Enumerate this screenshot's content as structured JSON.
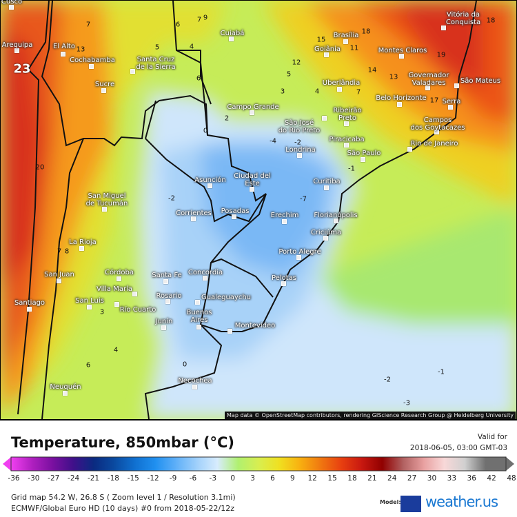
{
  "map": {
    "cities": [
      "Cusco",
      "Arequipa",
      "El Alto",
      "Cochabamba",
      "Sucre",
      "Santa Cruz\nde la Sierra",
      "Cuiabá",
      "Campo Grande",
      "Brasília",
      "Goiânia",
      "Montes Claros",
      "Vitória da\nConquista",
      "Governador\nValadares",
      "São Mateus",
      "Uberlândia",
      "Belo Horizonte",
      "Serra",
      "Ribeirão\nPreto",
      "São José\ndo Rio Preto",
      "Campos\ndos Goytacazes",
      "Piracicaba",
      "Rio de Janeiro",
      "São Paulo",
      "Londrina",
      "Curitiba",
      "Asunción",
      "Ciudad del\nEste",
      "Corrientes",
      "Posadas",
      "Erechim",
      "Florianópolis",
      "Criciúma",
      "Porto Alegre",
      "Pelotas",
      "San Miguel\nde Tucumán",
      "La Rioja",
      "San Juan",
      "Córdoba",
      "Villa María",
      "San Luis",
      "Río Cuarto",
      "Santiago",
      "Santa Fe",
      "Concordia",
      "Rosario",
      "Gualeguaychu",
      "Junín",
      "Buenos\nAires",
      "Montevideo",
      "Necochea",
      "Neuquén"
    ],
    "contour_labels": [
      "23",
      "7",
      "6",
      "7",
      "9",
      "5",
      "4",
      "13",
      "6",
      "2",
      "0",
      "20",
      "-2",
      "-4",
      "-2",
      "12",
      "5",
      "3",
      "4",
      "7",
      "14",
      "13",
      "18",
      "15",
      "11",
      "18",
      "19",
      "17",
      "-1",
      "-7",
      "-2",
      "-1",
      "-3",
      "7",
      "8",
      "3",
      "4",
      "6",
      "0"
    ],
    "attribution": "Map data © OpenStreetMap contributors, rendering GIScience Research Group @ Heidelberg University"
  },
  "legend": {
    "title": "Temperature, 850mbar (°C)",
    "valid_label": "Valid for",
    "valid_time": "2018-06-05, 03:00 GMT-03",
    "ticks": [
      "-36",
      "-30",
      "-27",
      "-24",
      "-21",
      "-18",
      "-15",
      "-12",
      "-9",
      "-6",
      "-3",
      "0",
      "3",
      "6",
      "9",
      "12",
      "15",
      "18",
      "21",
      "24",
      "27",
      "30",
      "33",
      "36",
      "42",
      "48"
    ],
    "colors": [
      "#f040f0",
      "#b020c0",
      "#7a10a0",
      "#40108a",
      "#0a2a80",
      "#0a4aa0",
      "#1070d0",
      "#2090f0",
      "#60b0f8",
      "#a0d0fb",
      "#d8ecfd",
      "#b0f070",
      "#d8ee50",
      "#f0e020",
      "#f8b010",
      "#f07810",
      "#e84010",
      "#c81810",
      "#900000",
      "#b06060",
      "#e8a0a0",
      "#f8d8d8",
      "#d0d0d0",
      "#707070"
    ]
  },
  "info": {
    "grid": "Grid map 54.2 W, 26.8 S ( Zoom level 1 / Resolution 3.1mi)",
    "model_run": "ECMWF/Global Euro HD (10 days) #0 from  2018-05-22/12z",
    "model_label": "Model:",
    "brand": "weather.us"
  }
}
